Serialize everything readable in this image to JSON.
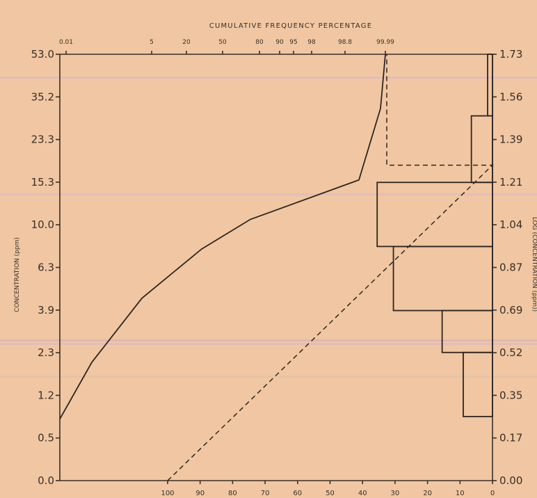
{
  "chart_data": {
    "type": "line",
    "title": "CUMULATIVE FREQUENCY PERCENTAGE",
    "ylabel": "CONCENTRATION (ppm)",
    "ylabel_right": "LOG (CONCENTRATION (ppm))",
    "y_left_ticks": [
      "53.0",
      "35.2",
      "23.3",
      "15.3",
      "10.0",
      "6.3",
      "3.9",
      "2.3",
      "1.2",
      "0.5",
      "0.0"
    ],
    "y_right_ticks": [
      "1.73",
      "1.56",
      "1.39",
      "1.21",
      "1.04",
      "0.87",
      "0.69",
      "0.52",
      "0.35",
      "0.17",
      "0.00"
    ],
    "x_top_ticks": [
      "0.01",
      "5",
      "20",
      "50",
      "80",
      "90",
      "95",
      "98",
      "98.8",
      "99.99"
    ],
    "x_bottom_ticks": [
      "100",
      "90",
      "80",
      "70",
      "60",
      "50",
      "40",
      "30",
      "20",
      "10",
      "0"
    ],
    "series": [
      {
        "style": "solid",
        "points": [
          {
            "cum_pct": 0.01,
            "log_conc": 0.25
          },
          {
            "cum_pct": 1.5,
            "log_conc": 0.48
          },
          {
            "cum_pct": 8,
            "log_conc": 0.74
          },
          {
            "cum_pct": 40,
            "log_conc": 0.94
          },
          {
            "cum_pct": 70,
            "log_conc": 1.06
          },
          {
            "cum_pct": 99.5,
            "log_conc": 1.22
          },
          {
            "cum_pct": 99.97,
            "log_conc": 1.51
          },
          {
            "cum_pct": 99.99,
            "log_conc": 1.73
          }
        ]
      },
      {
        "style": "dashed",
        "points": [
          {
            "pct": 100,
            "log_conc": 0.0
          },
          {
            "pct": 0,
            "log_conc": 1.28
          }
        ]
      }
    ],
    "histogram": {
      "bins_log_conc": [
        [
          0.26,
          0.52
        ],
        [
          0.52,
          0.69
        ],
        [
          0.69,
          0.95
        ],
        [
          0.95,
          1.21
        ],
        [
          1.21,
          1.48
        ],
        [
          1.48,
          1.73
        ]
      ],
      "frequency_pct": [
        9,
        15.5,
        30.5,
        35.5,
        6.5,
        1.5
      ]
    }
  }
}
